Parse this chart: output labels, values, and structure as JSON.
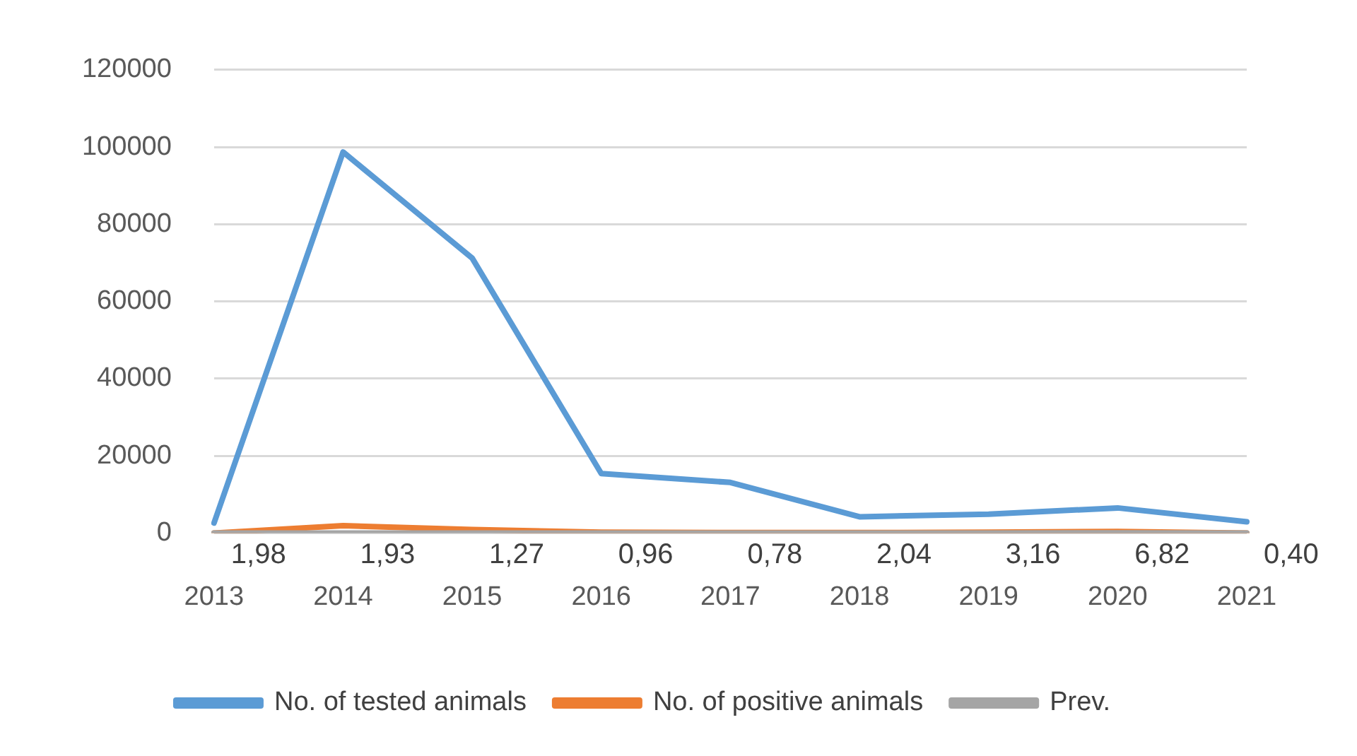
{
  "chart_data": {
    "type": "line",
    "categories": [
      "2013",
      "2014",
      "2015",
      "2016",
      "2017",
      "2018",
      "2019",
      "2020",
      "2021"
    ],
    "series": [
      {
        "name": "No. of tested animals",
        "color": "#5b9bd5",
        "values": [
          2600,
          98700,
          71200,
          15400,
          13100,
          4200,
          4900,
          6500,
          2900
        ]
      },
      {
        "name": "No. of positive animals",
        "color": "#ed7d31",
        "values": [
          0,
          1900,
          900,
          200,
          100,
          100,
          200,
          400,
          0
        ]
      },
      {
        "name": "Prev.",
        "color": "#a5a5a5",
        "values": [
          1.98,
          1.93,
          1.27,
          0.96,
          0.78,
          2.04,
          3.16,
          6.82,
          0.4
        ],
        "value_labels": [
          "1,98",
          "1,93",
          "1,27",
          "0,96",
          "0,78",
          "2,04",
          "3,16",
          "6,82",
          "0,40"
        ]
      }
    ],
    "ylim": [
      0,
      120000
    ],
    "yticks": [
      0,
      20000,
      40000,
      60000,
      80000,
      100000,
      120000
    ],
    "grid": "y",
    "legend": "bottom",
    "marker": "none",
    "line_style": "solid"
  }
}
